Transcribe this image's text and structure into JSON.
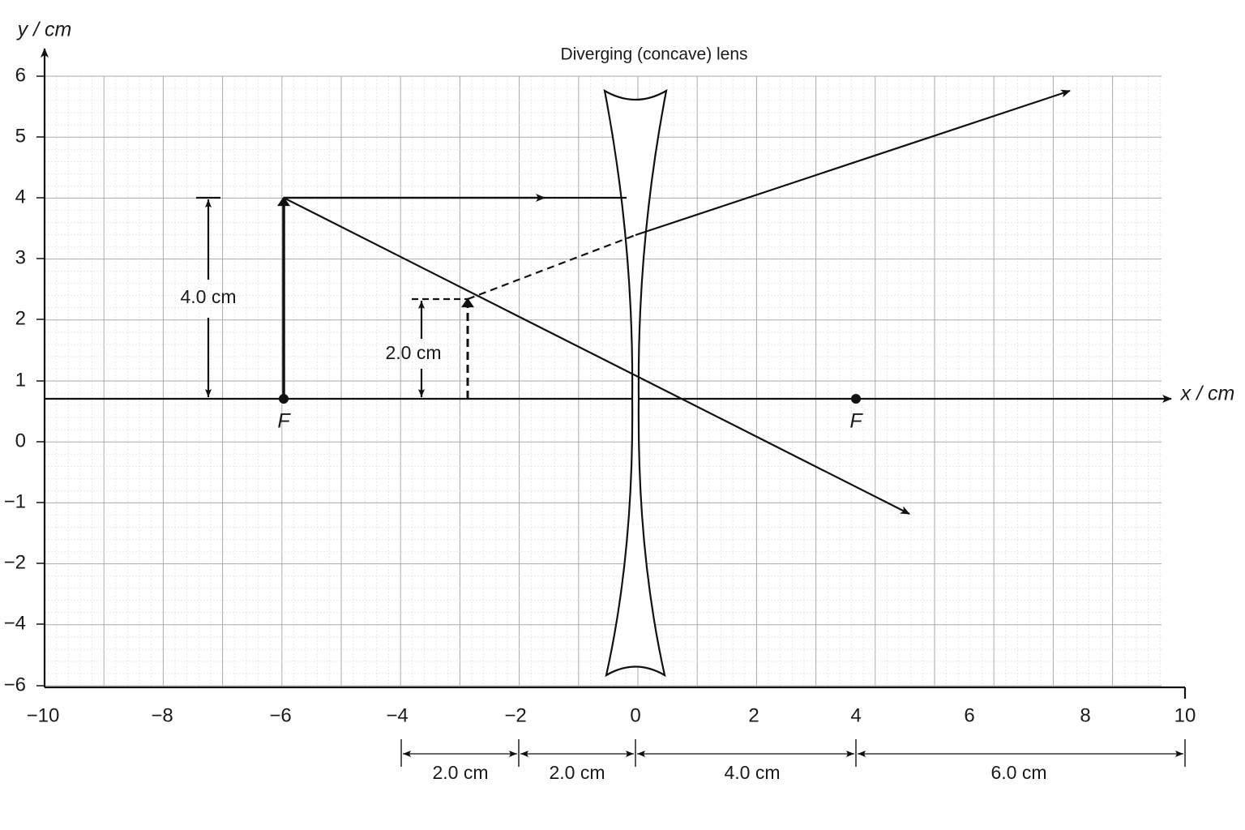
{
  "title": "Diverging (concave) lens",
  "y_axis_label": "y / cm",
  "x_axis_label": "x / cm",
  "y_tick_labels": [
    "6",
    "5",
    "4",
    "3",
    "2",
    "1",
    "0",
    "−1",
    "−2",
    "−4",
    "−6"
  ],
  "x_tick_labels": [
    "−10",
    "−8",
    "−6",
    "−4",
    "−2",
    "0",
    "2",
    "4",
    "6",
    "8",
    "10"
  ],
  "focal_labels": [
    "F",
    "F"
  ],
  "object_height_label": "4.0 cm",
  "image_height_label": "2.0 cm",
  "distance_labels": [
    "2.0 cm",
    "2.0 cm",
    "4.0 cm",
    "6.0 cm"
  ]
}
